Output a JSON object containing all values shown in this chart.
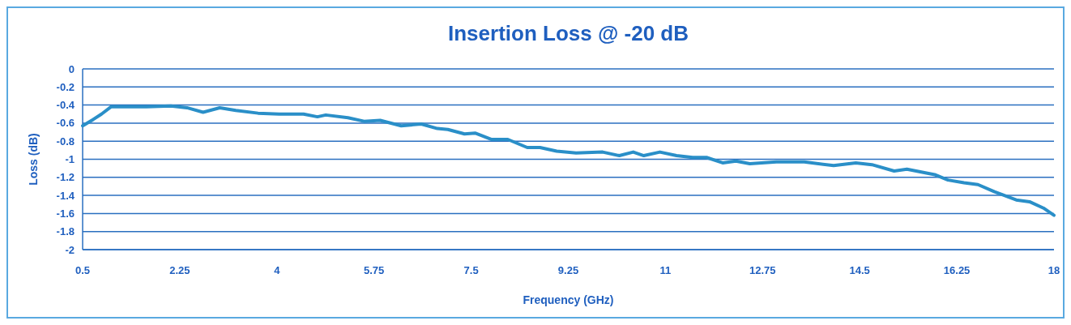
{
  "chart_data": {
    "type": "line",
    "title": "Insertion Loss @ -20 dB",
    "xlabel": "Frequency (GHz)",
    "ylabel": "Loss (dB)",
    "x": [
      0.5,
      0.69,
      0.84,
      1.01,
      1.21,
      1.35,
      1.65,
      2.09,
      2.38,
      2.67,
      2.97,
      3.26,
      3.66,
      4.04,
      4.48,
      4.73,
      4.88,
      5.28,
      5.57,
      5.86,
      6.24,
      6.6,
      6.89,
      7.08,
      7.38,
      7.57,
      7.86,
      8.16,
      8.51,
      8.74,
      9.04,
      9.39,
      9.87,
      10.17,
      10.42,
      10.61,
      10.9,
      11.2,
      11.49,
      11.74,
      12.03,
      12.27,
      12.52,
      13.0,
      13.5,
      14.03,
      14.43,
      14.72,
      15.12,
      15.35,
      15.85,
      16.09,
      16.38,
      16.63,
      16.93,
      17.32,
      17.56,
      17.81,
      18.0
    ],
    "series": [
      {
        "color": "#2a8fc8",
        "values": [
          -0.63,
          -0.56,
          -0.5,
          -0.42,
          -0.42,
          -0.42,
          -0.42,
          -0.41,
          -0.43,
          -0.48,
          -0.43,
          -0.46,
          -0.49,
          -0.5,
          -0.5,
          -0.53,
          -0.51,
          -0.54,
          -0.58,
          -0.57,
          -0.63,
          -0.61,
          -0.66,
          -0.67,
          -0.72,
          -0.71,
          -0.78,
          -0.78,
          -0.87,
          -0.87,
          -0.91,
          -0.93,
          -0.92,
          -0.96,
          -0.92,
          -0.96,
          -0.92,
          -0.96,
          -0.98,
          -0.98,
          -1.04,
          -1.02,
          -1.05,
          -1.03,
          -1.03,
          -1.07,
          -1.04,
          -1.06,
          -1.13,
          -1.11,
          -1.17,
          -1.23,
          -1.26,
          -1.28,
          -1.36,
          -1.45,
          -1.47,
          -1.54,
          -1.62
        ]
      }
    ],
    "xlim": [
      0.5,
      18
    ],
    "xticks": [
      0.5,
      2.25,
      4,
      5.75,
      7.5,
      9.25,
      11,
      12.75,
      14.5,
      16.25,
      18
    ],
    "ylim": [
      -2,
      0
    ],
    "yticks": [
      0,
      -0.2,
      -0.4,
      -0.6,
      -0.8,
      -1,
      -1.2,
      -1.4,
      -1.6,
      -1.8,
      -2
    ],
    "grid": "y",
    "marker": "none",
    "line_style": "solid"
  }
}
